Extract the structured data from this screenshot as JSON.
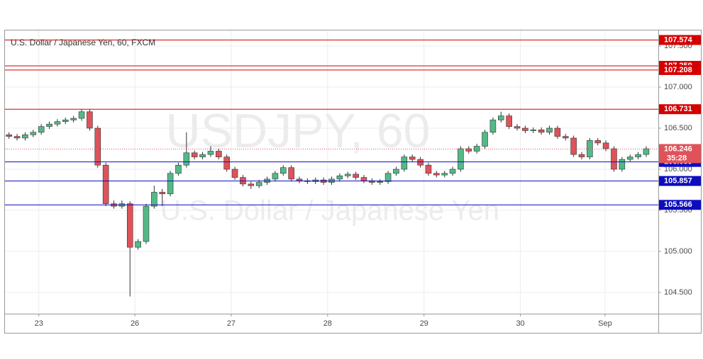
{
  "chart_data": {
    "type": "candlestick",
    "title": "U.S. Dollar / Japanese Yen, 60, FXCM",
    "watermark": {
      "symbol": "USDJPY, 60",
      "name": "U.S. Dollar / Japanese Yen"
    },
    "up_color": "#53b987",
    "down_color": "#e0525a",
    "grid": true,
    "x": [
      0,
      2,
      4,
      6,
      8,
      10,
      12,
      14,
      16,
      18,
      20,
      22,
      24,
      26,
      28,
      30,
      32,
      34,
      36,
      38,
      40,
      42,
      44,
      46,
      48,
      50,
      52,
      54,
      56,
      58,
      60,
      62,
      64,
      66,
      68,
      70,
      72,
      74,
      76,
      78,
      80,
      82,
      84,
      86,
      88,
      90,
      92,
      94,
      96,
      98,
      100,
      102,
      104,
      106,
      108,
      110,
      112,
      114,
      116,
      118,
      120,
      122,
      124,
      126,
      128,
      130,
      132,
      134,
      136,
      138,
      140,
      142,
      144,
      146,
      148,
      150,
      152,
      154,
      156,
      158
    ],
    "open": [
      106.42,
      106.4,
      106.38,
      106.42,
      106.45,
      106.52,
      106.55,
      106.58,
      106.6,
      106.62,
      106.7,
      106.5,
      106.05,
      105.58,
      105.55,
      105.58,
      105.05,
      105.12,
      105.55,
      105.72,
      105.7,
      105.95,
      106.05,
      106.2,
      106.15,
      106.18,
      106.22,
      106.15,
      106.0,
      105.9,
      105.82,
      105.8,
      105.84,
      105.88,
      105.95,
      106.02,
      105.88,
      105.86,
      105.85,
      105.87,
      105.84,
      105.88,
      105.92,
      105.94,
      105.9,
      105.86,
      105.84,
      105.85,
      105.95,
      106.0,
      106.15,
      106.12,
      106.05,
      105.95,
      105.93,
      105.95,
      106.0,
      106.25,
      106.22,
      106.28,
      106.45,
      106.6,
      106.65,
      106.52,
      106.5,
      106.47,
      106.48,
      106.45,
      106.5,
      106.4,
      106.38,
      106.18,
      106.15,
      106.35,
      106.32,
      106.25,
      106.0,
      106.12,
      106.15,
      106.18
    ],
    "high": [
      106.45,
      106.43,
      106.45,
      106.48,
      106.55,
      106.58,
      106.61,
      106.63,
      106.65,
      106.73,
      106.73,
      106.53,
      106.08,
      105.62,
      105.62,
      105.61,
      105.15,
      105.58,
      105.8,
      105.76,
      105.98,
      106.08,
      106.45,
      106.23,
      106.21,
      106.28,
      106.25,
      106.18,
      106.03,
      105.93,
      105.85,
      105.87,
      105.91,
      105.98,
      106.05,
      106.05,
      105.91,
      105.89,
      105.9,
      105.9,
      105.91,
      105.95,
      105.97,
      105.97,
      105.93,
      105.89,
      105.88,
      105.98,
      106.03,
      106.18,
      106.18,
      106.15,
      106.08,
      105.98,
      105.98,
      106.03,
      106.28,
      106.28,
      106.31,
      106.48,
      106.63,
      106.7,
      106.68,
      106.55,
      106.53,
      106.51,
      106.51,
      106.53,
      106.53,
      106.43,
      106.41,
      106.21,
      106.38,
      106.38,
      106.35,
      106.28,
      106.15,
      106.18,
      106.21,
      106.28
    ],
    "low": [
      106.37,
      106.35,
      106.35,
      106.39,
      106.42,
      106.49,
      106.52,
      106.55,
      106.57,
      106.59,
      106.47,
      106.02,
      105.55,
      105.52,
      105.52,
      104.45,
      105.02,
      105.09,
      105.52,
      105.55,
      105.67,
      105.92,
      106.02,
      106.12,
      106.12,
      106.15,
      106.12,
      105.97,
      105.87,
      105.79,
      105.76,
      105.77,
      105.81,
      105.85,
      105.92,
      105.85,
      105.83,
      105.82,
      105.82,
      105.81,
      105.81,
      105.85,
      105.89,
      105.87,
      105.83,
      105.81,
      105.81,
      105.82,
      105.92,
      105.97,
      106.09,
      106.02,
      105.92,
      105.9,
      105.9,
      105.92,
      105.97,
      106.19,
      106.19,
      106.25,
      106.42,
      106.57,
      106.49,
      106.47,
      106.44,
      106.44,
      106.42,
      106.42,
      106.37,
      106.35,
      106.15,
      106.12,
      106.12,
      106.29,
      106.22,
      105.97,
      105.97,
      106.09,
      106.12,
      106.15
    ],
    "close": [
      106.4,
      106.38,
      106.42,
      106.45,
      106.52,
      106.55,
      106.58,
      106.6,
      106.62,
      106.7,
      106.5,
      106.05,
      105.58,
      105.55,
      105.58,
      105.05,
      105.12,
      105.55,
      105.72,
      105.7,
      105.95,
      106.05,
      106.2,
      106.15,
      106.18,
      106.22,
      106.15,
      106.0,
      105.9,
      105.82,
      105.8,
      105.84,
      105.88,
      105.95,
      106.02,
      105.88,
      105.86,
      105.85,
      105.87,
      105.84,
      105.88,
      105.92,
      105.94,
      105.9,
      105.86,
      105.84,
      105.85,
      105.95,
      106.0,
      106.15,
      106.12,
      106.05,
      105.95,
      105.93,
      105.95,
      106.0,
      106.25,
      106.22,
      106.28,
      106.45,
      106.6,
      106.65,
      106.52,
      106.5,
      106.47,
      106.48,
      106.45,
      106.5,
      106.4,
      106.38,
      106.18,
      106.15,
      106.35,
      106.32,
      106.25,
      106.0,
      106.12,
      106.15,
      106.18,
      106.25
    ],
    "xlim": [
      -1,
      161
    ],
    "xticks": [
      {
        "value": 7.4,
        "label": "23"
      },
      {
        "value": 31.2,
        "label": "26"
      },
      {
        "value": 55.1,
        "label": "27"
      },
      {
        "value": 79.0,
        "label": "28"
      },
      {
        "value": 102.9,
        "label": "29"
      },
      {
        "value": 126.8,
        "label": "30"
      },
      {
        "value": 147.8,
        "label": "Sep"
      }
    ],
    "ylim": [
      104.241,
      107.69
    ],
    "yticks": [
      {
        "value": 104.5,
        "label": "104.500"
      },
      {
        "value": 105.0,
        "label": "105.000"
      },
      {
        "value": 105.5,
        "label": "105.500"
      },
      {
        "value": 106.0,
        "label": "106.000"
      },
      {
        "value": 106.5,
        "label": "106.500"
      },
      {
        "value": 107.0,
        "label": "107.000"
      },
      {
        "value": 107.5,
        "label": "107.500"
      }
    ],
    "levels": [
      {
        "value": 107.574,
        "color": "#d50000"
      },
      {
        "value": 107.259,
        "color": "#d50000"
      },
      {
        "value": 107.208,
        "color": "#d50000"
      },
      {
        "value": 106.731,
        "color": "#d50000"
      },
      {
        "value": 106.089,
        "color": "#0d0dbf"
      },
      {
        "value": 105.857,
        "color": "#0d0dbf"
      },
      {
        "value": 105.566,
        "color": "#0d0dbf"
      }
    ],
    "last_price": {
      "value": 106.246,
      "countdown": "35:28",
      "color": "#e0525a"
    }
  }
}
